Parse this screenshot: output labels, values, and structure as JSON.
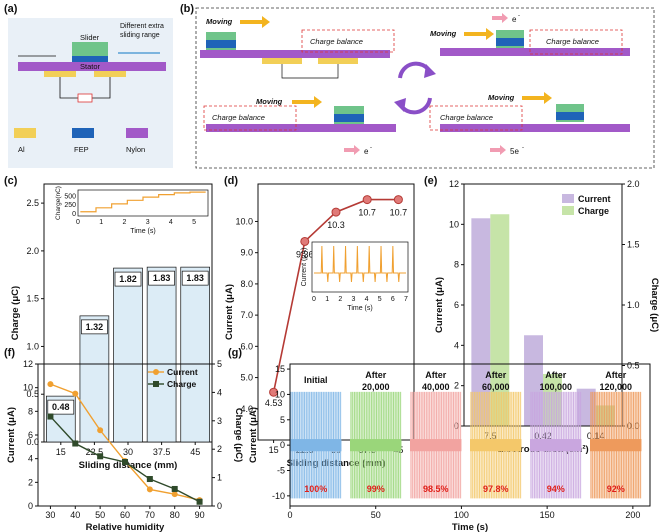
{
  "panel_labels": {
    "a": "(a)",
    "b": "(b)",
    "c": "(c)",
    "d": "(d)",
    "e": "(e)",
    "f": "(f)",
    "g": "(g)"
  },
  "schematic_a": {
    "slider": "Slider",
    "stator": "Stator",
    "extra_range": [
      "Different extra",
      "sliding range"
    ],
    "legend": [
      {
        "name": "Al",
        "color": "#f2cf57"
      },
      {
        "name": "FEP",
        "color": "#1f63b8"
      },
      {
        "name": "Nylon",
        "color": "#a259c8"
      }
    ]
  },
  "schematic_b": {
    "moving": "Moving",
    "charge_balance": "Charge balance",
    "electron": "e",
    "electron_sup": "-",
    "five_electron": "5e"
  },
  "chart_data": [
    {
      "id": "c",
      "type": "bar",
      "categories": [
        "15",
        "22.5",
        "30",
        "37.5",
        "45"
      ],
      "values": [
        0.48,
        1.32,
        1.82,
        1.83,
        1.83
      ],
      "value_labels": [
        "0.48",
        "1.32",
        "1.82",
        "1.83",
        "1.83"
      ],
      "xlabel": "Sliding distance (mm)",
      "ylabel": "Charge (μC)",
      "ylim": [
        0,
        2.7
      ],
      "yticks": [
        "0.0",
        "0.5",
        "1.0",
        "1.5",
        "2.0",
        "2.5"
      ],
      "ytick_values": [
        0,
        0.5,
        1,
        1.5,
        2,
        2.5
      ],
      "bar_color": "#dcecf6",
      "inset": {
        "type": "line",
        "xlabel": "Time (s)",
        "ylabel": "Charge(nC)",
        "xticks": [
          "0",
          "1",
          "2",
          "3",
          "4",
          "5"
        ],
        "yticks": [
          "500",
          "250",
          "0"
        ],
        "ytick_values": [
          500,
          250,
          0
        ],
        "xlim": [
          0,
          5.6
        ],
        "ylim": [
          -80,
          650
        ],
        "steps_y": [
          40,
          150,
          260,
          360,
          450,
          520,
          570,
          590
        ],
        "color": "#f0a030"
      }
    },
    {
      "id": "d",
      "type": "line",
      "x": [
        15,
        22.5,
        30,
        37.5,
        45
      ],
      "y": [
        4.53,
        9.36,
        10.3,
        10.7,
        10.7
      ],
      "value_labels": [
        "4.53",
        "9.36",
        "10.3",
        "10.7",
        "10.7"
      ],
      "xticks": [
        "15",
        "22.5",
        "30",
        "37.5",
        "45"
      ],
      "xlabel": "Sliding distance (mm)",
      "ylabel": "Current (μA)",
      "ylim": [
        3,
        11.2
      ],
      "yticks": [
        "4.0",
        "5.0",
        "6.0",
        "7.0",
        "8.0",
        "9.0",
        "10.0"
      ],
      "ytick_values": [
        4,
        5,
        6,
        7,
        8,
        9,
        10
      ],
      "color": "#b53a35",
      "marker_color": "#e07a78",
      "inset": {
        "type": "line",
        "xlabel": "Time (s)",
        "ylabel": "Current (μA)",
        "xticks": [
          "0",
          "1",
          "2",
          "3",
          "4",
          "5",
          "6",
          "7"
        ],
        "xlim": [
          0,
          7
        ],
        "color": "#f0a030",
        "spikes": 7
      }
    },
    {
      "id": "e",
      "type": "bar",
      "categories": [
        "7.5",
        "0.42",
        "0.14"
      ],
      "series": [
        {
          "name": "Current",
          "axis": "left",
          "values": [
            10.3,
            4.5,
            1.85
          ],
          "color": "#c8b8e0"
        },
        {
          "name": "Charge",
          "axis": "right",
          "values": [
            1.75,
            0.43,
            0.17
          ],
          "color": "#c6e4a8"
        }
      ],
      "xlabel": "Electrode area (cm²)",
      "ylabel": "Current (μA)",
      "y2label": "Charge (μC)",
      "ylim": [
        0,
        12
      ],
      "yticks": [
        "0",
        "2",
        "4",
        "6",
        "8",
        "10",
        "12"
      ],
      "ytick_values": [
        0,
        2,
        4,
        6,
        8,
        10,
        12
      ],
      "y2lim": [
        0,
        2
      ],
      "y2ticks": [
        "0.0",
        "0.5",
        "1.0",
        "1.5",
        "2.0"
      ],
      "y2tick_values": [
        0,
        0.5,
        1,
        1.5,
        2
      ],
      "legend": "top-right"
    },
    {
      "id": "f",
      "type": "line",
      "x": [
        30,
        40,
        50,
        60,
        70,
        80,
        90
      ],
      "series": [
        {
          "name": "Current",
          "axis": "left",
          "values": [
            10.3,
            9.5,
            6.4,
            3.8,
            1.4,
            1.0,
            0.5
          ],
          "color": "#f0a030",
          "marker": "circle"
        },
        {
          "name": "Charge",
          "axis": "right",
          "values": [
            3.15,
            2.2,
            1.75,
            1.55,
            0.95,
            0.6,
            0.15
          ],
          "color": "#2f4a2a",
          "marker": "square"
        }
      ],
      "xlabel": "Relative humidity",
      "ylabel": "Current (μA)",
      "y2label": "Charge (μC)",
      "xlim": [
        25,
        95
      ],
      "xticks": [
        "30",
        "40",
        "50",
        "60",
        "70",
        "80",
        "90"
      ],
      "xtick_values": [
        30,
        40,
        50,
        60,
        70,
        80,
        90
      ],
      "ylim": [
        0,
        12
      ],
      "yticks": [
        "0",
        "2",
        "4",
        "6",
        "8",
        "10",
        "12"
      ],
      "ytick_values": [
        0,
        2,
        4,
        6,
        8,
        10,
        12
      ],
      "y2lim": [
        0,
        5
      ],
      "y2ticks": [
        "0",
        "1",
        "2",
        "3",
        "4",
        "5"
      ],
      "y2tick_values": [
        0,
        1,
        2,
        3,
        4,
        5
      ],
      "legend": "top-right"
    },
    {
      "id": "g",
      "type": "line",
      "xlabel": "Time (s)",
      "ylabel": "Current (μA)",
      "xlim": [
        0,
        210
      ],
      "xticks": [
        "0",
        "50",
        "100",
        "150",
        "200"
      ],
      "xtick_values": [
        0,
        50,
        100,
        150,
        200
      ],
      "ylim": [
        -12,
        16
      ],
      "yticks": [
        "-10",
        "-5",
        "0",
        "5",
        "10",
        "15"
      ],
      "ytick_values": [
        -10,
        -5,
        0,
        5,
        10,
        15
      ],
      "segments": [
        {
          "label": [
            "Initial"
          ],
          "percent": "100%",
          "start": 0,
          "end": 30,
          "color": "#7fb6e6"
        },
        {
          "label": [
            "After",
            "20,000"
          ],
          "percent": "99%",
          "start": 35,
          "end": 65,
          "color": "#9ad67a"
        },
        {
          "label": [
            "After",
            "40,000"
          ],
          "percent": "98.5%",
          "start": 70,
          "end": 100,
          "color": "#f2a3a0"
        },
        {
          "label": [
            "After",
            "60,000"
          ],
          "percent": "97.8%",
          "start": 105,
          "end": 135,
          "color": "#f4c86a"
        },
        {
          "label": [
            "After",
            "100,000"
          ],
          "percent": "94%",
          "start": 140,
          "end": 170,
          "color": "#c9a6df"
        },
        {
          "label": [
            "After",
            "120,000"
          ],
          "percent": "92%",
          "start": 175,
          "end": 205,
          "color": "#ee9a5c"
        }
      ],
      "percent_color": "#e0201a"
    }
  ]
}
